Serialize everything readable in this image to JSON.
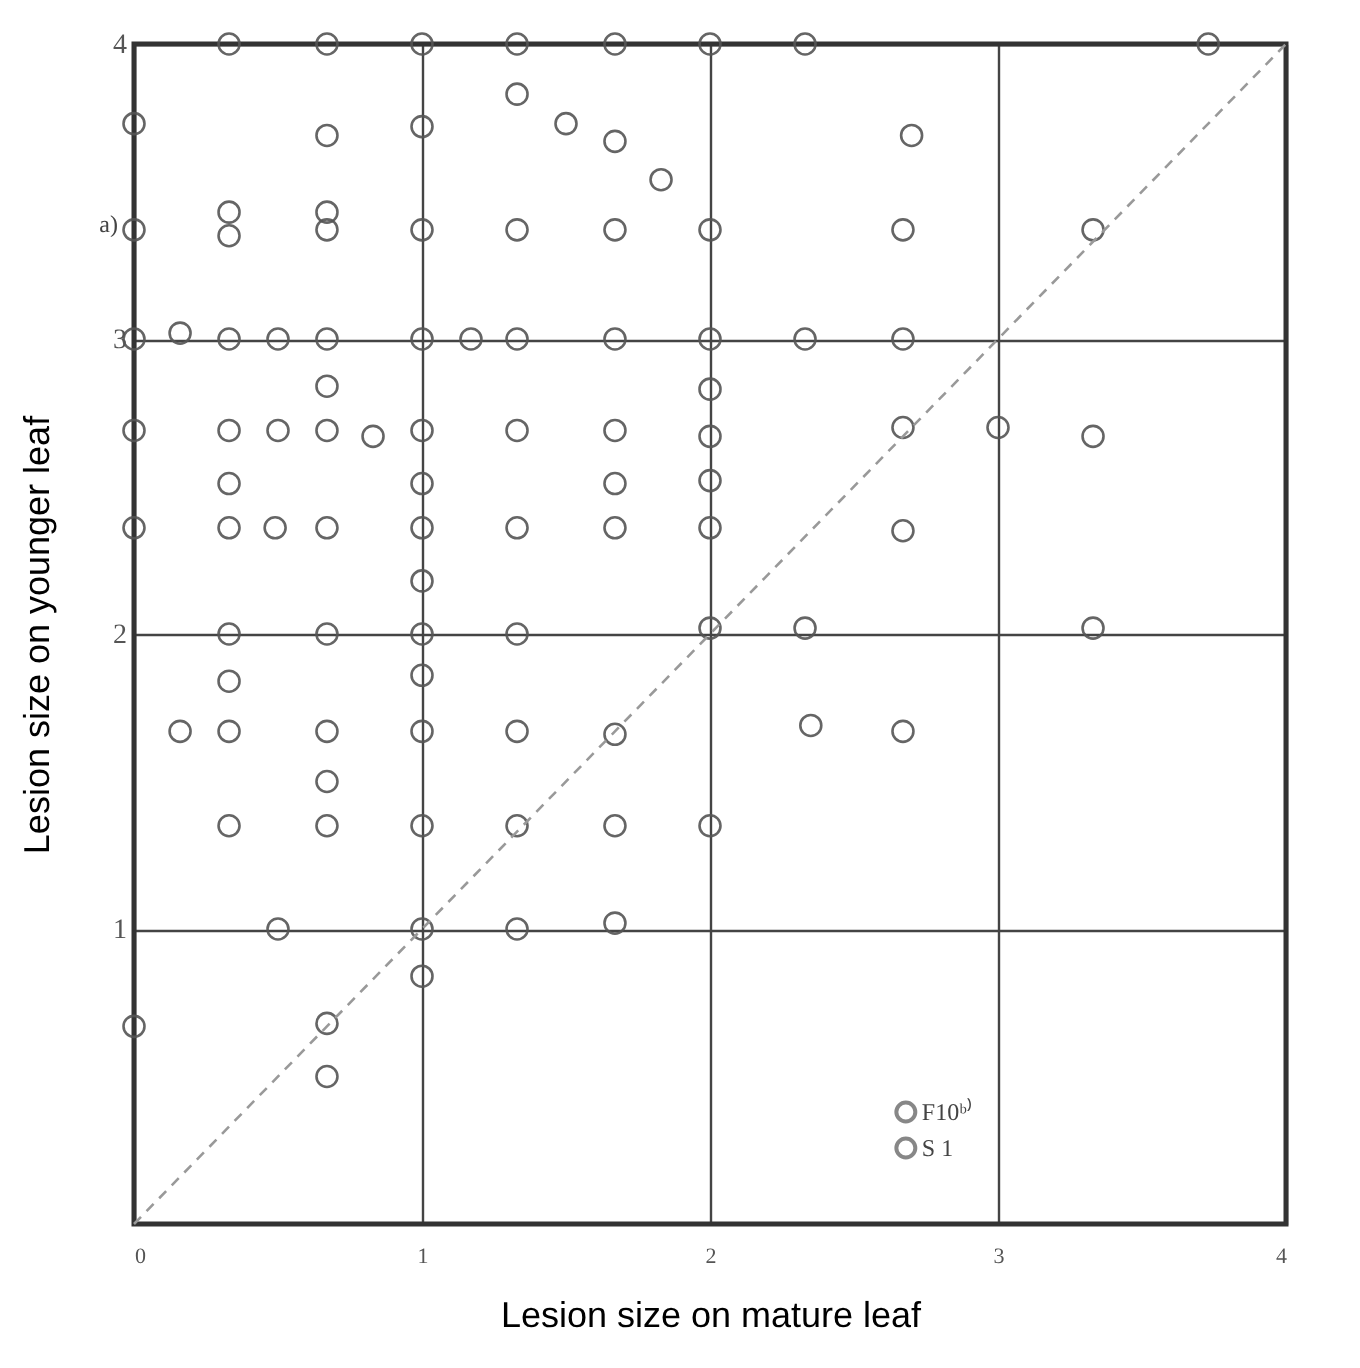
{
  "chart_data": {
    "type": "scatter",
    "xlabel": "Lesion size on mature leaf",
    "ylabel": "Lesion size on younger leaf",
    "annotations": [
      "a)"
    ],
    "xlim": [
      0,
      4
    ],
    "ylim": [
      0,
      4
    ],
    "xticks": [
      0,
      1,
      2,
      3,
      4
    ],
    "yticks": [
      1,
      2,
      3,
      4
    ],
    "grid": true,
    "legend": "bottom right",
    "series": [
      {
        "name": "F10ᵇ⁾",
        "color": "#555555",
        "marker": "circle",
        "x": [
          0.33,
          2,
          2.33,
          3.73,
          0,
          1.33,
          1.5,
          1.83,
          1,
          2.7,
          0,
          0.33,
          0.33,
          0.67,
          1,
          2,
          3.33,
          0.16,
          0.33,
          1.17,
          2.67,
          0.67,
          2,
          0,
          0.5,
          0.83,
          1.33,
          1.67,
          2,
          2.67,
          3,
          3.33,
          0.33,
          1,
          1.67,
          2,
          0.33,
          0.49,
          1.33,
          1.67,
          2,
          1,
          2,
          2.33,
          3.33,
          0.33,
          1,
          0.16,
          0.33,
          1.67,
          2.35,
          2.67,
          0.67,
          0.33,
          1,
          1.33,
          2,
          0.5,
          1,
          1.33,
          1.67,
          1,
          0,
          0.67,
          0.67
        ],
        "values": [
          4,
          4,
          4,
          4,
          3.73,
          3.83,
          3.73,
          3.54,
          3.72,
          3.69,
          3.37,
          3.43,
          3.35,
          3.43,
          3.37,
          3.37,
          3.37,
          3.02,
          3,
          3,
          3,
          2.84,
          2.83,
          2.69,
          2.69,
          2.67,
          2.69,
          2.69,
          2.67,
          2.7,
          2.7,
          2.67,
          2.51,
          2.51,
          2.51,
          2.52,
          2.36,
          2.36,
          2.36,
          2.36,
          2.36,
          2.18,
          2.02,
          2.02,
          2.02,
          1.84,
          1.86,
          1.67,
          1.67,
          1.66,
          1.69,
          1.67,
          1.5,
          1.35,
          1.35,
          1.35,
          1.35,
          1,
          1,
          1,
          1.02,
          0.84,
          0.67,
          0.68,
          0.5
        ]
      },
      {
        "name": "S 1",
        "color": "#555555",
        "marker": "circle",
        "x": [
          0.67,
          1,
          1.33,
          1.67,
          0.67,
          1.67,
          1.33,
          1.67,
          0.67,
          2.67,
          0,
          0.5,
          0.67,
          1,
          1.33,
          1.67,
          2,
          2.33,
          0.33,
          0.67,
          1,
          0,
          0.67,
          1,
          2.67,
          0.33,
          0.67,
          1,
          1.33,
          0.67,
          1,
          1.33,
          0.67,
          1.67
        ],
        "values": [
          4,
          4,
          4,
          4,
          3.69,
          3.67,
          3.37,
          3.37,
          3.37,
          3.37,
          3,
          3,
          3,
          3,
          3,
          3,
          3,
          3,
          2.69,
          2.69,
          2.69,
          2.36,
          2.36,
          2.36,
          2.35,
          2,
          2,
          2,
          2,
          1.67,
          1.67,
          1.67,
          1.35,
          1.35
        ]
      },
      {
        "type": "line",
        "color": "#999999",
        "line_style": "dashed",
        "x": [
          0,
          4
        ],
        "values": [
          0,
          4
        ]
      }
    ]
  }
}
